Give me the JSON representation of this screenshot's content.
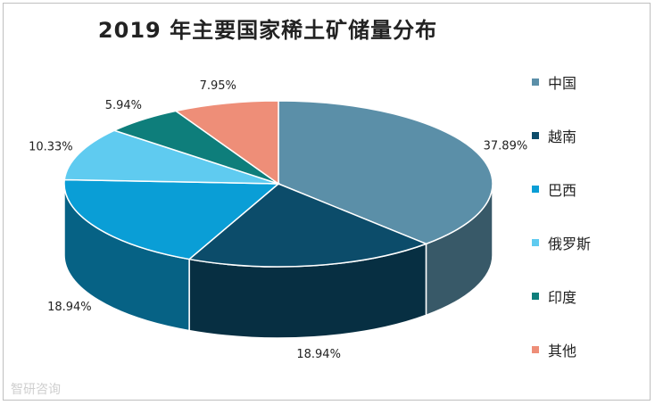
{
  "chart_data": {
    "type": "pie",
    "title": "2019 年主要国家稀土矿储量分布",
    "categories": [
      "中国",
      "越南",
      "巴西",
      "俄罗斯",
      "印度",
      "其他"
    ],
    "values": [
      37.89,
      18.94,
      18.94,
      10.33,
      5.94,
      7.95
    ],
    "data_labels": [
      "37.89%",
      "18.94%",
      "18.94%",
      "10.33%",
      "5.94%",
      "7.95%"
    ],
    "colors": [
      "#5B8FA8",
      "#0C4C6A",
      "#0A9ED6",
      "#5FCBF0",
      "#0E7E7B",
      "#EE8E78"
    ],
    "legend_position": "right",
    "three_d": true
  },
  "watermark": "智研咨询"
}
